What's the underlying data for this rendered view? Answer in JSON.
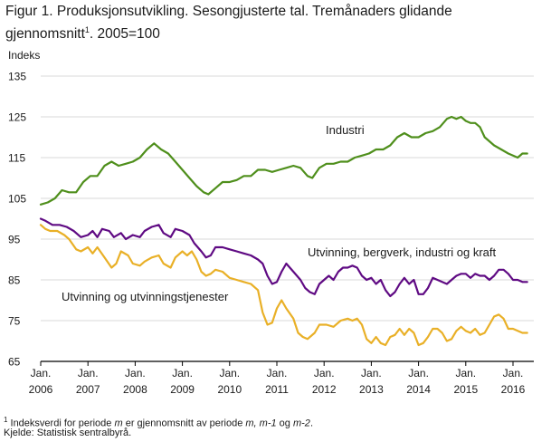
{
  "figure": {
    "title_line1": "Figur 1. Produksjonsutvikling. Sesongjusterte tal. Tremånaders glidande",
    "title_line2_text": "gjennomsnitt",
    "title_line2_sup": "1",
    "title_line2_rest": ". 2005=100"
  },
  "footnote": {
    "sup": "1",
    "line1_a": " Indeksverdi for periode ",
    "line1_m1": "m",
    "line1_b": " er gjennomsnitt av periode ",
    "line1_m2": "m, m-1",
    "line1_c": " og ",
    "line1_m3": "m-2",
    "line1_d": ".",
    "source": "Kjelde: Statistisk sentralbyrå."
  },
  "colors": {
    "industri": "#4f8f1c",
    "utvinning_bergverk": "#5f0a83",
    "utvinning_tjenester": "#e9b027",
    "grid": "#d9d9d9",
    "axis": "#000000"
  },
  "chart_data": {
    "type": "line",
    "ylabel": "Indeks",
    "ylim": [
      65,
      135
    ],
    "yticks": [
      65,
      75,
      85,
      95,
      105,
      115,
      125,
      135
    ],
    "xlim": [
      2006.0,
      2016.33
    ],
    "xticks": [
      {
        "value": 2006,
        "month": "Jan.",
        "year": "2006"
      },
      {
        "value": 2007,
        "month": "Jan.",
        "year": "2007"
      },
      {
        "value": 2008,
        "month": "Jan.",
        "year": "2008"
      },
      {
        "value": 2009,
        "month": "Jan.",
        "year": "2009"
      },
      {
        "value": 2010,
        "month": "Jan.",
        "year": "2010"
      },
      {
        "value": 2011,
        "month": "Jan.",
        "year": "2011"
      },
      {
        "value": 2012,
        "month": "Jan.",
        "year": "2012"
      },
      {
        "value": 2013,
        "month": "Jan.",
        "year": "2013"
      },
      {
        "value": 2014,
        "month": "Jan.",
        "year": "2014"
      },
      {
        "value": 2015,
        "month": "Jan.",
        "year": "2015"
      },
      {
        "value": 2016,
        "month": "Jan.",
        "year": "2016"
      }
    ],
    "grid": "horizontal",
    "series": [
      {
        "name": "Industri",
        "color_key": "industri",
        "points": [
          [
            2006.0,
            103.5
          ],
          [
            2006.15,
            104
          ],
          [
            2006.3,
            105
          ],
          [
            2006.45,
            107
          ],
          [
            2006.6,
            106.5
          ],
          [
            2006.75,
            106.5
          ],
          [
            2006.9,
            109
          ],
          [
            2007.05,
            110.5
          ],
          [
            2007.2,
            110.5
          ],
          [
            2007.35,
            113
          ],
          [
            2007.5,
            114
          ],
          [
            2007.65,
            113
          ],
          [
            2007.8,
            113.5
          ],
          [
            2007.95,
            114
          ],
          [
            2008.1,
            115
          ],
          [
            2008.25,
            117
          ],
          [
            2008.4,
            118.5
          ],
          [
            2008.55,
            117
          ],
          [
            2008.7,
            116
          ],
          [
            2008.85,
            114
          ],
          [
            2009.0,
            112
          ],
          [
            2009.15,
            110
          ],
          [
            2009.3,
            108
          ],
          [
            2009.45,
            106.5
          ],
          [
            2009.55,
            106
          ],
          [
            2009.7,
            107.5
          ],
          [
            2009.85,
            109
          ],
          [
            2010.0,
            109
          ],
          [
            2010.15,
            109.5
          ],
          [
            2010.3,
            110.5
          ],
          [
            2010.45,
            110.5
          ],
          [
            2010.6,
            112
          ],
          [
            2010.75,
            112
          ],
          [
            2010.9,
            111.5
          ],
          [
            2011.05,
            112
          ],
          [
            2011.2,
            112.5
          ],
          [
            2011.35,
            113
          ],
          [
            2011.5,
            112.5
          ],
          [
            2011.65,
            110.5
          ],
          [
            2011.75,
            110
          ],
          [
            2011.9,
            112.5
          ],
          [
            2012.05,
            113.5
          ],
          [
            2012.2,
            113.5
          ],
          [
            2012.35,
            114
          ],
          [
            2012.5,
            114
          ],
          [
            2012.65,
            115
          ],
          [
            2012.8,
            115.5
          ],
          [
            2012.95,
            116
          ],
          [
            2013.1,
            117
          ],
          [
            2013.25,
            117
          ],
          [
            2013.4,
            118
          ],
          [
            2013.55,
            120
          ],
          [
            2013.7,
            121
          ],
          [
            2013.85,
            120
          ],
          [
            2014.0,
            120
          ],
          [
            2014.15,
            121
          ],
          [
            2014.3,
            121.5
          ],
          [
            2014.45,
            122.5
          ],
          [
            2014.6,
            124.5
          ],
          [
            2014.7,
            125
          ],
          [
            2014.8,
            124.5
          ],
          [
            2014.9,
            125
          ],
          [
            2015.0,
            124
          ],
          [
            2015.1,
            123.5
          ],
          [
            2015.2,
            123.5
          ],
          [
            2015.3,
            122.5
          ],
          [
            2015.4,
            120
          ],
          [
            2015.5,
            119
          ],
          [
            2015.6,
            118
          ],
          [
            2015.75,
            117
          ],
          [
            2015.9,
            116
          ],
          [
            2016.0,
            115.5
          ],
          [
            2016.1,
            115
          ],
          [
            2016.2,
            116
          ],
          [
            2016.3,
            116
          ]
        ]
      },
      {
        "name": "Utvinning, bergverk, industri og kraft",
        "color_key": "utvinning_bergverk",
        "points": [
          [
            2006.0,
            100
          ],
          [
            2006.1,
            99.5
          ],
          [
            2006.25,
            98.5
          ],
          [
            2006.4,
            98.5
          ],
          [
            2006.55,
            98
          ],
          [
            2006.7,
            97
          ],
          [
            2006.85,
            95.5
          ],
          [
            2007.0,
            96
          ],
          [
            2007.1,
            97
          ],
          [
            2007.2,
            95.5
          ],
          [
            2007.3,
            97.5
          ],
          [
            2007.45,
            97
          ],
          [
            2007.55,
            95.5
          ],
          [
            2007.7,
            96.5
          ],
          [
            2007.8,
            95
          ],
          [
            2007.95,
            96
          ],
          [
            2008.1,
            95.5
          ],
          [
            2008.2,
            97
          ],
          [
            2008.35,
            98
          ],
          [
            2008.5,
            98.5
          ],
          [
            2008.6,
            96.5
          ],
          [
            2008.75,
            95.5
          ],
          [
            2008.85,
            97.5
          ],
          [
            2009.0,
            97
          ],
          [
            2009.15,
            96
          ],
          [
            2009.25,
            94
          ],
          [
            2009.4,
            92
          ],
          [
            2009.5,
            90.5
          ],
          [
            2009.6,
            91
          ],
          [
            2009.7,
            93
          ],
          [
            2009.85,
            93
          ],
          [
            2010.0,
            92.5
          ],
          [
            2010.15,
            92
          ],
          [
            2010.3,
            91.5
          ],
          [
            2010.45,
            91
          ],
          [
            2010.6,
            90
          ],
          [
            2010.7,
            89
          ],
          [
            2010.8,
            86
          ],
          [
            2010.9,
            84
          ],
          [
            2011.0,
            84.5
          ],
          [
            2011.1,
            87
          ],
          [
            2011.2,
            89
          ],
          [
            2011.35,
            87
          ],
          [
            2011.5,
            85
          ],
          [
            2011.6,
            83
          ],
          [
            2011.7,
            82
          ],
          [
            2011.8,
            81.5
          ],
          [
            2011.9,
            84
          ],
          [
            2012.0,
            85
          ],
          [
            2012.1,
            86
          ],
          [
            2012.2,
            85
          ],
          [
            2012.3,
            87
          ],
          [
            2012.4,
            88
          ],
          [
            2012.5,
            88
          ],
          [
            2012.6,
            88.5
          ],
          [
            2012.7,
            88
          ],
          [
            2012.8,
            86
          ],
          [
            2012.9,
            85
          ],
          [
            2013.0,
            85.5
          ],
          [
            2013.1,
            84
          ],
          [
            2013.2,
            85
          ],
          [
            2013.3,
            82.5
          ],
          [
            2013.4,
            81
          ],
          [
            2013.5,
            82
          ],
          [
            2013.6,
            84
          ],
          [
            2013.7,
            85.5
          ],
          [
            2013.8,
            84
          ],
          [
            2013.9,
            85
          ],
          [
            2014.0,
            81.5
          ],
          [
            2014.1,
            81.5
          ],
          [
            2014.2,
            83
          ],
          [
            2014.3,
            85.5
          ],
          [
            2014.4,
            85
          ],
          [
            2014.5,
            84.5
          ],
          [
            2014.6,
            84
          ],
          [
            2014.7,
            85
          ],
          [
            2014.8,
            86
          ],
          [
            2014.9,
            86.5
          ],
          [
            2015.0,
            86.5
          ],
          [
            2015.1,
            85.5
          ],
          [
            2015.2,
            86.5
          ],
          [
            2015.3,
            86
          ],
          [
            2015.4,
            86
          ],
          [
            2015.5,
            85
          ],
          [
            2015.6,
            86
          ],
          [
            2015.7,
            87.5
          ],
          [
            2015.8,
            87.5
          ],
          [
            2015.9,
            86.5
          ],
          [
            2016.0,
            85
          ],
          [
            2016.1,
            85
          ],
          [
            2016.2,
            84.5
          ],
          [
            2016.3,
            84.5
          ]
        ]
      },
      {
        "name": "Utvinning og utvinningstjenester",
        "color_key": "utvinning_tjenester",
        "points": [
          [
            2006.0,
            98.5
          ],
          [
            2006.1,
            97.5
          ],
          [
            2006.2,
            97
          ],
          [
            2006.35,
            97
          ],
          [
            2006.5,
            96
          ],
          [
            2006.6,
            95
          ],
          [
            2006.75,
            92.5
          ],
          [
            2006.85,
            92
          ],
          [
            2007.0,
            93
          ],
          [
            2007.1,
            91.5
          ],
          [
            2007.2,
            93
          ],
          [
            2007.35,
            90.5
          ],
          [
            2007.5,
            88
          ],
          [
            2007.6,
            89
          ],
          [
            2007.7,
            92
          ],
          [
            2007.85,
            91
          ],
          [
            2007.95,
            89
          ],
          [
            2008.1,
            88.5
          ],
          [
            2008.2,
            89.5
          ],
          [
            2008.35,
            90.5
          ],
          [
            2008.5,
            91
          ],
          [
            2008.6,
            89
          ],
          [
            2008.75,
            88
          ],
          [
            2008.85,
            90.5
          ],
          [
            2009.0,
            92
          ],
          [
            2009.1,
            91
          ],
          [
            2009.2,
            92
          ],
          [
            2009.3,
            90
          ],
          [
            2009.4,
            87
          ],
          [
            2009.5,
            86
          ],
          [
            2009.6,
            86.5
          ],
          [
            2009.7,
            87.5
          ],
          [
            2009.85,
            87
          ],
          [
            2010.0,
            85.5
          ],
          [
            2010.15,
            85
          ],
          [
            2010.3,
            84.5
          ],
          [
            2010.45,
            84
          ],
          [
            2010.6,
            82.5
          ],
          [
            2010.7,
            77
          ],
          [
            2010.8,
            74
          ],
          [
            2010.9,
            74.5
          ],
          [
            2011.0,
            78
          ],
          [
            2011.1,
            80
          ],
          [
            2011.2,
            78
          ],
          [
            2011.35,
            75.5
          ],
          [
            2011.45,
            72
          ],
          [
            2011.55,
            71
          ],
          [
            2011.65,
            70.5
          ],
          [
            2011.8,
            72
          ],
          [
            2011.9,
            74
          ],
          [
            2012.05,
            74
          ],
          [
            2012.2,
            73.5
          ],
          [
            2012.35,
            75
          ],
          [
            2012.5,
            75.5
          ],
          [
            2012.6,
            75
          ],
          [
            2012.7,
            75.5
          ],
          [
            2012.8,
            74
          ],
          [
            2012.9,
            70.5
          ],
          [
            2013.0,
            69.5
          ],
          [
            2013.1,
            71
          ],
          [
            2013.2,
            69.5
          ],
          [
            2013.3,
            69
          ],
          [
            2013.4,
            71
          ],
          [
            2013.5,
            71.5
          ],
          [
            2013.6,
            73
          ],
          [
            2013.7,
            71.5
          ],
          [
            2013.8,
            73
          ],
          [
            2013.9,
            72
          ],
          [
            2014.0,
            69
          ],
          [
            2014.1,
            69.5
          ],
          [
            2014.2,
            71
          ],
          [
            2014.3,
            73
          ],
          [
            2014.4,
            73
          ],
          [
            2014.5,
            72
          ],
          [
            2014.6,
            70
          ],
          [
            2014.7,
            70.5
          ],
          [
            2014.8,
            72.5
          ],
          [
            2014.9,
            73.5
          ],
          [
            2015.0,
            72.5
          ],
          [
            2015.1,
            72
          ],
          [
            2015.2,
            73
          ],
          [
            2015.3,
            71.5
          ],
          [
            2015.4,
            72
          ],
          [
            2015.5,
            74
          ],
          [
            2015.6,
            76
          ],
          [
            2015.7,
            76.5
          ],
          [
            2015.8,
            75.5
          ],
          [
            2015.9,
            73
          ],
          [
            2016.0,
            73
          ],
          [
            2016.1,
            72.5
          ],
          [
            2016.2,
            72
          ],
          [
            2016.3,
            72
          ]
        ]
      }
    ],
    "labels": [
      {
        "text": "Industri",
        "series": 0
      },
      {
        "text": "Utvinning, bergverk, industri og kraft",
        "series": 1
      },
      {
        "text": "Utvinning og utvinningstjenester",
        "series": 2
      }
    ]
  }
}
